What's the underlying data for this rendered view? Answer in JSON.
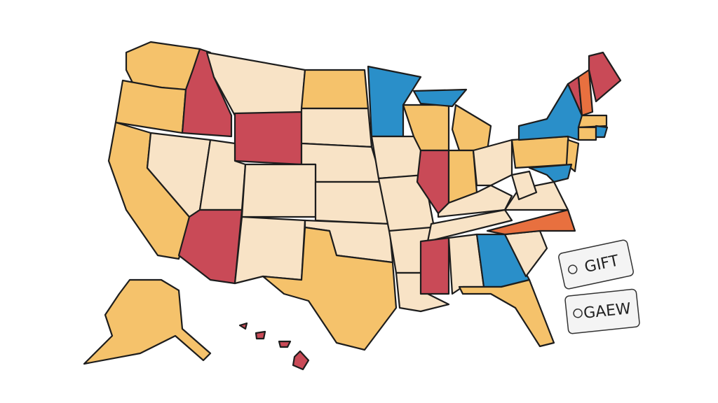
{
  "tags": [
    {
      "label": "GIFT"
    },
    {
      "label": "GAEW"
    }
  ]
}
